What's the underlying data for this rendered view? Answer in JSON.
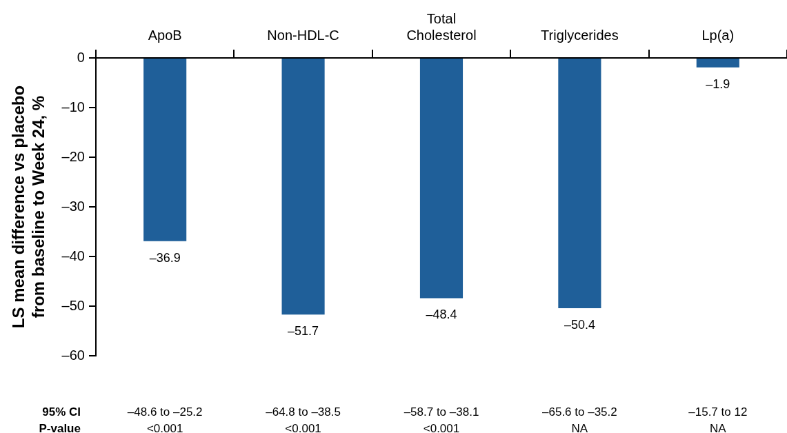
{
  "chart_data": {
    "type": "bar",
    "ylabel": "LS mean difference vs placebo from baseline to Week 24, %",
    "categories": [
      "ApoB",
      "Non-HDL-C",
      "Total Cholesterol",
      "Triglycerides",
      "Lp(a)"
    ],
    "values": [
      -36.9,
      -51.7,
      -48.4,
      -50.4,
      -1.9
    ],
    "value_labels": [
      "–36.9",
      "–51.7",
      "–48.4",
      "–50.4",
      "–1.9"
    ],
    "color": "#1f5f99",
    "ylim": [
      -60,
      0
    ],
    "yticks": [
      {
        "value": 0,
        "label": "0"
      },
      {
        "value": -10,
        "label": "–10"
      },
      {
        "value": -20,
        "label": "–20"
      },
      {
        "value": -30,
        "label": "–30"
      },
      {
        "value": -40,
        "label": "–40"
      },
      {
        "value": -50,
        "label": "–50"
      },
      {
        "value": -60,
        "label": "–60"
      }
    ],
    "grid": false,
    "legend": false,
    "annotations": [
      "95% CI\nP-value",
      "–48.6 to –25.2\n<0.001",
      "–64.8 to –38.5\n<0.001",
      "–58.7 to –38.1\n<0.001",
      "–65.6 to –35.2\nNA",
      "–15.7 to 12\nNA"
    ]
  }
}
